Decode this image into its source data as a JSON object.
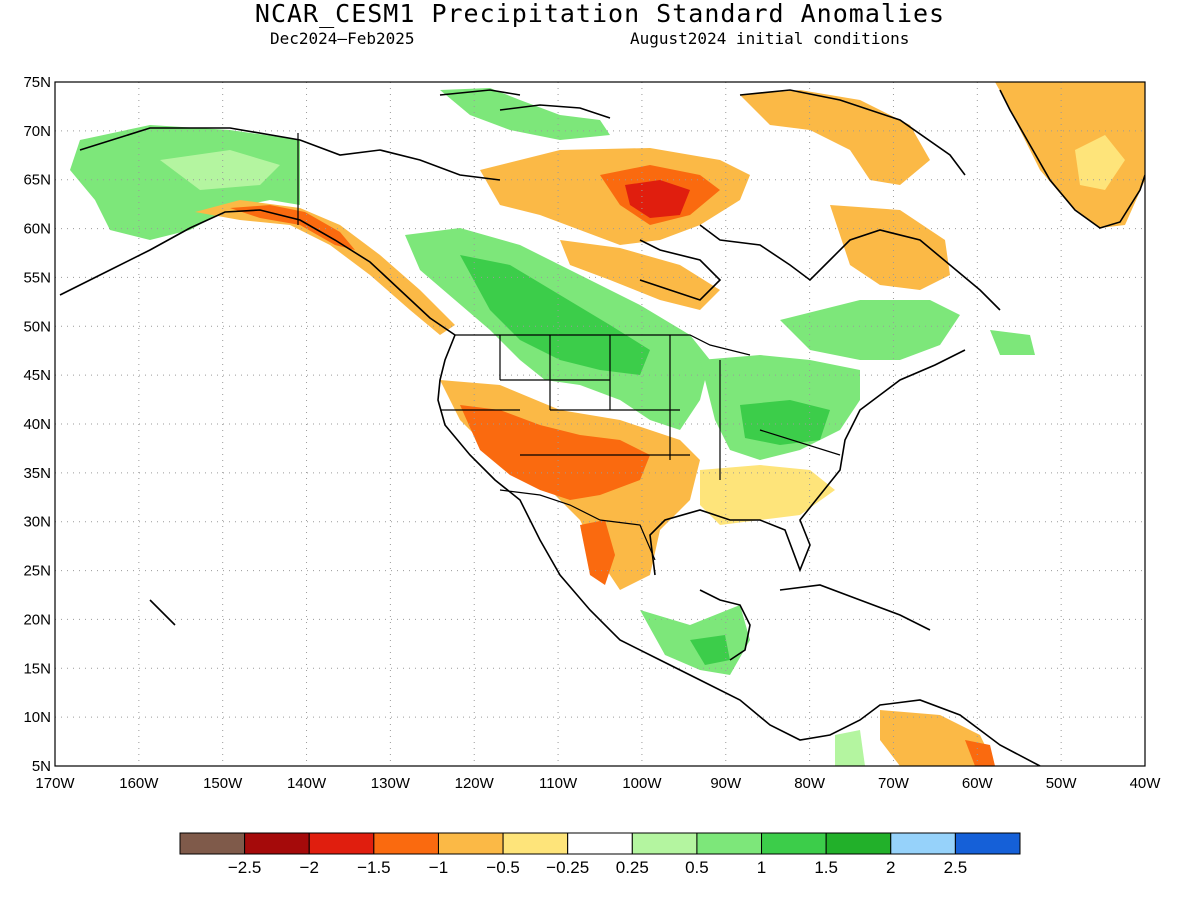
{
  "title": "NCAR_CESM1 Precipitation Standard Anomalies",
  "subtitle_period": "Dec2024–Feb2025",
  "subtitle_ic": "August2024 initial conditions",
  "map": {
    "lon_range": [
      -170,
      -40
    ],
    "lat_range": [
      5,
      75
    ],
    "lon_ticks": [
      "170W",
      "160W",
      "150W",
      "140W",
      "130W",
      "120W",
      "110W",
      "100W",
      "90W",
      "80W",
      "70W",
      "60W",
      "50W",
      "40W"
    ],
    "lat_ticks": [
      "75N",
      "70N",
      "65N",
      "60N",
      "55N",
      "50N",
      "45N",
      "40N",
      "35N",
      "30N",
      "25N",
      "20N",
      "15N",
      "10N",
      "5N"
    ],
    "grid": "dotted",
    "projection": "lat-lon",
    "colors": {
      "lt_-2.5": "#7f5a4a",
      "-2.5_-2": "#a50a0a",
      "-2_-1.5": "#e01e0e",
      "-1.5_-1": "#fa6a0f",
      "-1_-0.5": "#fbb946",
      "-0.5_-0.25": "#fee47a",
      "-0.25_0.25": "#ffffff",
      "0.25_0.5": "#b4f5a0",
      "0.5_1": "#7de77a",
      "1_1.5": "#3ccd4a",
      "1.5_2": "#22b02a",
      "2_2.5": "#96d2fa",
      "gt_2.5": "#1560d8"
    }
  },
  "colorbar": {
    "labels": [
      "−2.5",
      "−2",
      "−1.5",
      "−1",
      "−0.5",
      "−0.25",
      "0.25",
      "0.5",
      "1",
      "1.5",
      "2",
      "2.5"
    ],
    "colors": [
      "#7f5a4a",
      "#a50a0a",
      "#e01e0e",
      "#fa6a0f",
      "#fbb946",
      "#fee47a",
      "#ffffff",
      "#b4f5a0",
      "#7de77a",
      "#3ccd4a",
      "#22b02a",
      "#96d2fa",
      "#1560d8"
    ]
  }
}
